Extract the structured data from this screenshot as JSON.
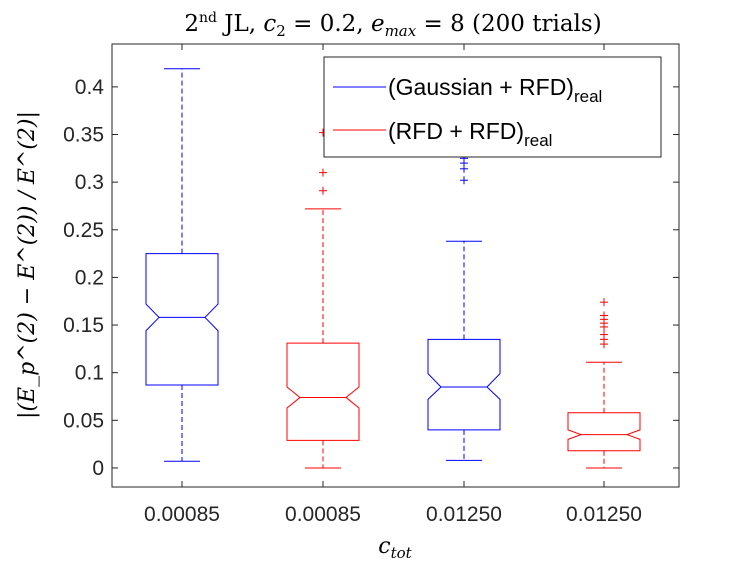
{
  "chart_data": {
    "type": "box",
    "title": {
      "ordinal_number": "2",
      "ordinal_suffix": "nd",
      "method": "JL,",
      "c_param": "c",
      "c_sub": "2",
      "c_value": " = 0.2,",
      "e_param": "e",
      "e_sub": "max",
      "e_value": " = 8",
      "trials": "(200 trials)"
    },
    "xlabel": {
      "base": "c",
      "sub": "tot"
    },
    "ylabel": "|(E_p^(2) − E^(2)) / E^(2)|",
    "ylim": [
      -0.02,
      0.445
    ],
    "yticks": [
      0,
      0.05,
      0.1,
      0.15,
      0.2,
      0.25,
      0.3,
      0.35,
      0.4
    ],
    "ytick_labels": [
      "0",
      "0.05",
      "0.1",
      "0.15",
      "0.2",
      "0.25",
      "0.3",
      "0.35",
      "0.4"
    ],
    "categories": [
      "0.00085",
      "0.00085",
      "0.01250",
      "0.01250"
    ],
    "legend": {
      "placement": "top-right",
      "entries": [
        {
          "label": "(Gaussian + RFD)",
          "sub": "real",
          "color": "#0000ff"
        },
        {
          "label": "(RFD + RFD)",
          "sub": "real",
          "color": "#ff0000"
        }
      ]
    },
    "series": [
      {
        "category": "0.00085",
        "color": "#0000ff",
        "whisker_low": 0.007,
        "q1": 0.087,
        "notch_low": 0.144,
        "median": 0.158,
        "notch_high": 0.172,
        "q3": 0.225,
        "whisker_high": 0.419,
        "outliers": []
      },
      {
        "category": "0.00085",
        "color": "#ff0000",
        "whisker_low": 0.0,
        "q1": 0.029,
        "notch_low": 0.063,
        "median": 0.074,
        "notch_high": 0.085,
        "q3": 0.131,
        "whisker_high": 0.272,
        "outliers": [
          0.291,
          0.31,
          0.352
        ]
      },
      {
        "category": "0.01250",
        "color": "#0000ff",
        "whisker_low": 0.008,
        "q1": 0.04,
        "notch_low": 0.072,
        "median": 0.085,
        "notch_high": 0.099,
        "q3": 0.135,
        "whisker_high": 0.238,
        "outliers": []
      },
      {
        "category": "0.01250",
        "color": "#ff0000",
        "whisker_low": 0.0,
        "q1": 0.018,
        "notch_low": 0.03,
        "median": 0.035,
        "notch_high": 0.04,
        "q3": 0.058,
        "whisker_high": 0.111,
        "outliers": [
          0.13,
          0.135,
          0.14,
          0.148,
          0.152,
          0.156,
          0.16,
          0.174
        ]
      }
    ],
    "hidden_outliers_note": ""
  },
  "extra_outliers_series3": [
    0.302,
    0.314,
    0.32,
    0.325,
    0.33
  ]
}
